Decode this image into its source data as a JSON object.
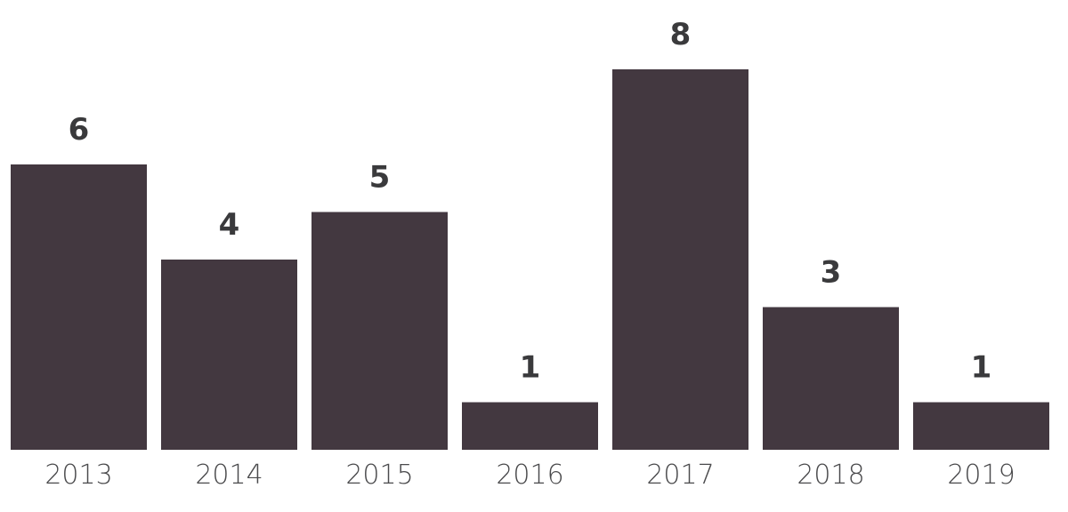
{
  "chart_data": {
    "type": "bar",
    "categories": [
      "2013",
      "2014",
      "2015",
      "2016",
      "2017",
      "2018",
      "2019"
    ],
    "values": [
      6,
      4,
      5,
      1,
      8,
      3,
      1
    ],
    "title": "",
    "xlabel": "",
    "ylabel": "",
    "ylim": [
      0,
      8
    ],
    "grid": false,
    "data_labels": true,
    "bar_color": "#433840"
  }
}
